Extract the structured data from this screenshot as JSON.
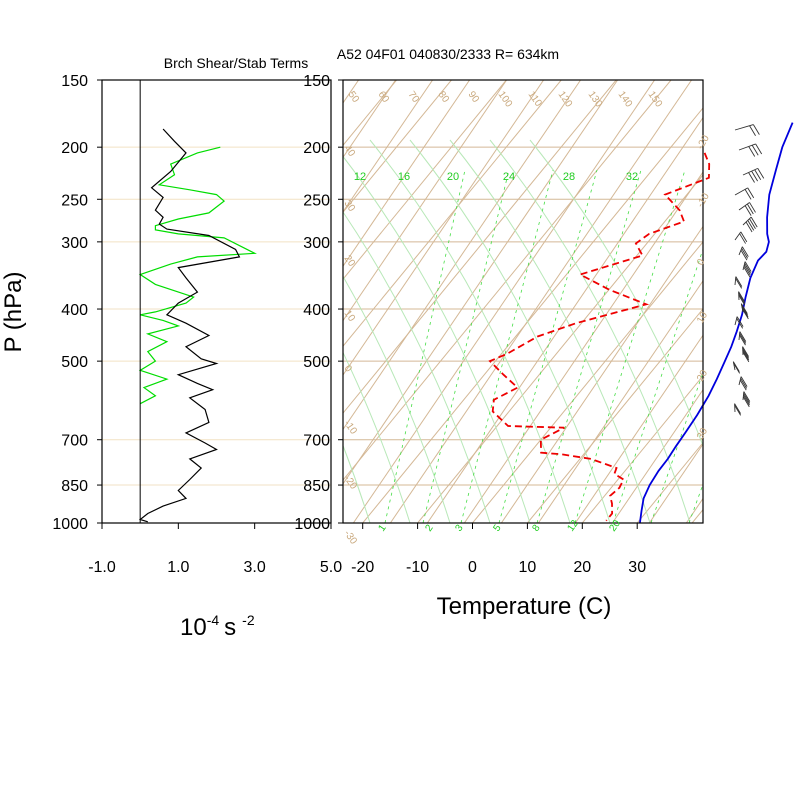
{
  "chart_data": {
    "type": "skew-t sounding",
    "header": "A52 04F01 040830/2333 R= 634km",
    "shear_panel": {
      "title": "Brch Shear/Stab Terms",
      "xlabel_base": "10",
      "xlabel_exp": "-4",
      "xlabel_unit": "s",
      "xlabel_exp2": "-2",
      "xlim": [
        -1.0,
        5.0
      ],
      "xticks": [
        "-1.0",
        "1.0",
        "3.0",
        "5.0"
      ],
      "ylabel": "P (hPa)",
      "shear_color": "#00dd00",
      "stab_color": "#000000",
      "shear_series": [
        [
          2.1,
          200
        ],
        [
          1.5,
          205
        ],
        [
          0.8,
          215
        ],
        [
          0.9,
          225
        ],
        [
          0.5,
          235
        ],
        [
          1.3,
          240
        ],
        [
          2.0,
          245
        ],
        [
          2.2,
          252
        ],
        [
          1.8,
          265
        ],
        [
          1.0,
          272
        ],
        [
          0.4,
          280
        ],
        [
          0.4,
          285
        ],
        [
          1.0,
          290
        ],
        [
          2.2,
          295
        ],
        [
          3.0,
          315
        ],
        [
          1.5,
          320
        ],
        [
          0.8,
          330
        ],
        [
          0.0,
          345
        ],
        [
          0.4,
          360
        ],
        [
          1.4,
          380
        ],
        [
          1.2,
          390
        ],
        [
          0.4,
          405
        ],
        [
          0.0,
          410
        ],
        [
          0.6,
          420
        ],
        [
          1.0,
          430
        ],
        [
          0.2,
          445
        ],
        [
          0.7,
          460
        ],
        [
          0.2,
          480
        ],
        [
          0.4,
          500
        ],
        [
          0.0,
          520
        ],
        [
          0.7,
          540
        ],
        [
          0.1,
          560
        ],
        [
          0.4,
          580
        ],
        [
          0.0,
          600
        ]
      ],
      "stab_series": [
        [
          0.6,
          185
        ],
        [
          0.9,
          195
        ],
        [
          1.2,
          205
        ],
        [
          0.8,
          222
        ],
        [
          0.3,
          238
        ],
        [
          0.6,
          248
        ],
        [
          0.4,
          262
        ],
        [
          0.6,
          270
        ],
        [
          0.5,
          278
        ],
        [
          0.7,
          284
        ],
        [
          1.8,
          292
        ],
        [
          2.5,
          310
        ],
        [
          2.6,
          320
        ],
        [
          1.0,
          335
        ],
        [
          1.2,
          350
        ],
        [
          1.5,
          372
        ],
        [
          1.0,
          390
        ],
        [
          0.7,
          410
        ],
        [
          1.2,
          425
        ],
        [
          1.8,
          448
        ],
        [
          1.2,
          470
        ],
        [
          1.6,
          495
        ],
        [
          2.0,
          505
        ],
        [
          1.0,
          530
        ],
        [
          1.5,
          550
        ],
        [
          1.9,
          565
        ],
        [
          1.3,
          585
        ],
        [
          1.7,
          615
        ],
        [
          1.8,
          650
        ],
        [
          1.2,
          680
        ],
        [
          1.7,
          710
        ],
        [
          2.0,
          730
        ],
        [
          1.3,
          760
        ],
        [
          1.6,
          790
        ],
        [
          1.3,
          830
        ],
        [
          1.0,
          870
        ],
        [
          1.2,
          900
        ],
        [
          0.6,
          930
        ],
        [
          0.2,
          960
        ],
        [
          0.0,
          985
        ],
        [
          0.2,
          995
        ]
      ]
    },
    "skewt": {
      "xlabel": "Temperature (C)",
      "xlim": [
        -25,
        40
      ],
      "xticks": [
        "-20",
        "-10",
        "0",
        "10",
        "20",
        "30"
      ],
      "pressure_levels": [
        "150",
        "200",
        "250",
        "300",
        "400",
        "500",
        "700",
        "850",
        "1000"
      ],
      "temperature_color": "#0000dd",
      "dewpoint_color": "#ee0000",
      "grid_color": "#d4b896",
      "mixing_color": "#44dd44",
      "temperature": [
        [
          -1.5,
          180
        ],
        [
          0.3,
          200
        ],
        [
          2.5,
          220
        ],
        [
          5.0,
          245
        ],
        [
          8.0,
          270
        ],
        [
          10.5,
          290
        ],
        [
          12.0,
          300
        ],
        [
          13.0,
          313
        ],
        [
          12.8,
          325
        ],
        [
          14.0,
          350
        ],
        [
          16.0,
          380
        ],
        [
          18.0,
          410
        ],
        [
          19.5,
          440
        ],
        [
          20.8,
          470
        ],
        [
          21.8,
          500
        ],
        [
          23.0,
          540
        ],
        [
          24.0,
          580
        ],
        [
          24.8,
          630
        ],
        [
          25.3,
          680
        ],
        [
          25.6,
          720
        ],
        [
          26.0,
          760
        ],
        [
          26.1,
          800
        ],
        [
          26.6,
          850
        ],
        [
          27.5,
          900
        ],
        [
          29.0,
          950
        ],
        [
          30.5,
          1000
        ]
      ],
      "dewpoint": [
        [
          -13.0,
          205
        ],
        [
          -10.5,
          215
        ],
        [
          -8.5,
          228
        ],
        [
          -14.0,
          245
        ],
        [
          -9.0,
          262
        ],
        [
          -6.5,
          275
        ],
        [
          -11.0,
          290
        ],
        [
          -12.0,
          302
        ],
        [
          -9.0,
          318
        ],
        [
          -17.5,
          345
        ],
        [
          -10.0,
          368
        ],
        [
          -1.0,
          392
        ],
        [
          -11.0,
          425
        ],
        [
          -16.0,
          450
        ],
        [
          -19.0,
          485
        ],
        [
          -21.0,
          500
        ],
        [
          -16.5,
          530
        ],
        [
          -12.0,
          560
        ],
        [
          -14.5,
          590
        ],
        [
          -13.0,
          620
        ],
        [
          -8.0,
          660
        ],
        [
          2.5,
          665
        ],
        [
          0.0,
          700
        ],
        [
          2.0,
          740
        ],
        [
          6.0,
          745
        ],
        [
          12.0,
          760
        ],
        [
          18.0,
          790
        ],
        [
          18.5,
          810
        ],
        [
          21.0,
          830
        ],
        [
          21.5,
          860
        ],
        [
          21.0,
          890
        ],
        [
          22.5,
          920
        ],
        [
          24.0,
          960
        ],
        [
          24.0,
          990
        ]
      ],
      "theta_labels": [
        "50",
        "60",
        "70",
        "80",
        "90",
        "100",
        "110",
        "120",
        "130",
        "140",
        "150"
      ],
      "theta_side_labels": [
        "40",
        "30",
        "20",
        "10",
        "0",
        "-10",
        "-20",
        "-30"
      ],
      "wet_bulb_labels": [
        "-20",
        "-10",
        "0",
        "10",
        "20",
        "30"
      ],
      "mixing_ratio_top": [
        "12",
        "16",
        "20",
        "24",
        "28",
        "32"
      ],
      "mixing_ratio_bottom": [
        "1",
        "2",
        "3",
        "5",
        "8",
        "12",
        "20"
      ]
    }
  }
}
